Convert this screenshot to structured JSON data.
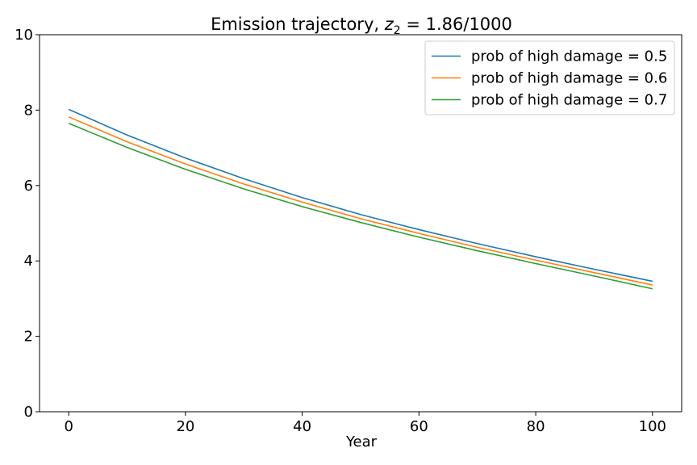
{
  "chart_data": {
    "type": "line",
    "title_prefix": "Emission trajectory, ",
    "title_var": "z",
    "title_sub": "2",
    "title_suffix": " = 1.86/1000",
    "xlabel": "Year",
    "ylabel": "",
    "xlim": [
      -5,
      105
    ],
    "ylim": [
      0,
      10
    ],
    "xticks": [
      0,
      20,
      40,
      60,
      80,
      100
    ],
    "yticks": [
      0,
      2,
      4,
      6,
      8,
      10
    ],
    "grid": false,
    "legend_position": "top-right",
    "x": [
      0,
      10,
      20,
      30,
      40,
      50,
      60,
      70,
      80,
      90,
      100
    ],
    "series": [
      {
        "name": "prob of high damage = 0.5",
        "color": "#1f77b4",
        "values": [
          8.02,
          7.34,
          6.73,
          6.18,
          5.68,
          5.23,
          4.83,
          4.46,
          4.11,
          3.78,
          3.46
        ]
      },
      {
        "name": "prob of high damage = 0.6",
        "color": "#ff7f0e",
        "values": [
          7.82,
          7.16,
          6.57,
          6.04,
          5.56,
          5.12,
          4.73,
          4.36,
          4.02,
          3.69,
          3.36
        ]
      },
      {
        "name": "prob of high damage = 0.7",
        "color": "#2ca02c",
        "values": [
          7.65,
          7.01,
          6.43,
          5.91,
          5.44,
          5.02,
          4.63,
          4.27,
          3.93,
          3.6,
          3.26
        ]
      }
    ]
  }
}
